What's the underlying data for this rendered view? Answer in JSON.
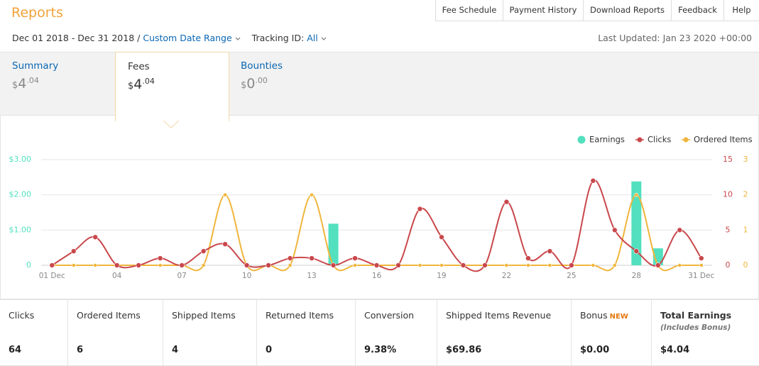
{
  "header": {
    "title": "Reports",
    "nav": [
      "Fee Schedule",
      "Payment History",
      "Download Reports",
      "Feedback",
      "Help"
    ]
  },
  "filters": {
    "date_range": "Dec 01 2018 - Dec 31 2018 /",
    "custom_range": "Custom Date Range",
    "tracking_label": "Tracking ID:",
    "tracking_value": "All",
    "last_updated": "Last Updated: Jan 23 2020 +00:00"
  },
  "tabs": [
    {
      "label": "Summary",
      "symbol": "$",
      "whole": "4",
      "fraction": ".04"
    },
    {
      "label": "Fees",
      "symbol": "$",
      "whole": "4",
      "fraction": ".04"
    },
    {
      "label": "Bounties",
      "symbol": "$",
      "whole": "0",
      "fraction": ".00"
    }
  ],
  "chart_data": {
    "type": "combo",
    "categories": [
      "01 Dec",
      null,
      null,
      "04",
      null,
      null,
      "07",
      null,
      null,
      "10",
      null,
      null,
      "13",
      null,
      null,
      "16",
      null,
      null,
      "19",
      null,
      null,
      "22",
      null,
      null,
      "25",
      null,
      null,
      "28",
      null,
      null,
      "31 Dec"
    ],
    "series": [
      {
        "name": "Earnings",
        "type": "bar",
        "color": "#52e0bf",
        "axis": "y",
        "values": [
          0,
          0,
          0,
          0,
          0,
          0,
          0,
          0,
          0,
          0,
          0,
          0,
          0,
          1.18,
          0,
          0,
          0,
          0,
          0,
          0,
          0,
          0,
          0,
          0,
          0,
          0,
          0,
          2.38,
          0.48,
          0,
          0
        ]
      },
      {
        "name": "Clicks",
        "type": "line",
        "color": "#c9474b",
        "axis": "y2",
        "values": [
          0,
          2,
          4,
          0,
          0,
          1,
          0,
          2,
          3,
          0,
          0,
          1,
          1,
          0,
          1,
          0,
          0,
          8,
          4,
          0,
          0,
          9,
          1,
          2,
          0,
          12,
          5,
          2,
          0,
          5,
          1
        ]
      },
      {
        "name": "Ordered Items",
        "type": "line",
        "color": "#f0b53c",
        "axis": "y3",
        "values": [
          0,
          0,
          0,
          0,
          0,
          0,
          0,
          0,
          2,
          0,
          0,
          0,
          2,
          0,
          0,
          0,
          0,
          0,
          0,
          0,
          0,
          0,
          0,
          0,
          0,
          0,
          0,
          2,
          0,
          0,
          0
        ]
      }
    ],
    "ylim": [
      0,
      3
    ],
    "yticks": [
      0,
      {
        "value": 1,
        "label": "$1.00"
      },
      {
        "value": 2,
        "label": "$2.00"
      },
      {
        "value": 3,
        "label": "$3.00"
      }
    ],
    "y2lim": [
      0,
      15
    ],
    "y2ticks": [
      0,
      5,
      10,
      15
    ],
    "y3lim": [
      0,
      3
    ],
    "y3ticks": [
      0,
      1,
      2,
      3
    ],
    "grid": true
  },
  "stats": [
    {
      "label": "Clicks",
      "value": "64"
    },
    {
      "label": "Ordered Items",
      "value": "6"
    },
    {
      "label": "Shipped Items",
      "value": "4"
    },
    {
      "label": "Returned Items",
      "value": "0"
    },
    {
      "label": "Conversion",
      "value": "9.38%"
    },
    {
      "label": "Shipped Items Revenue",
      "value": "$69.86"
    },
    {
      "label": "Bonus",
      "badge": "NEW",
      "value": "$0.00"
    },
    {
      "label": "Total Earnings",
      "note": "(Includes Bonus)",
      "value": "$4.04"
    }
  ]
}
